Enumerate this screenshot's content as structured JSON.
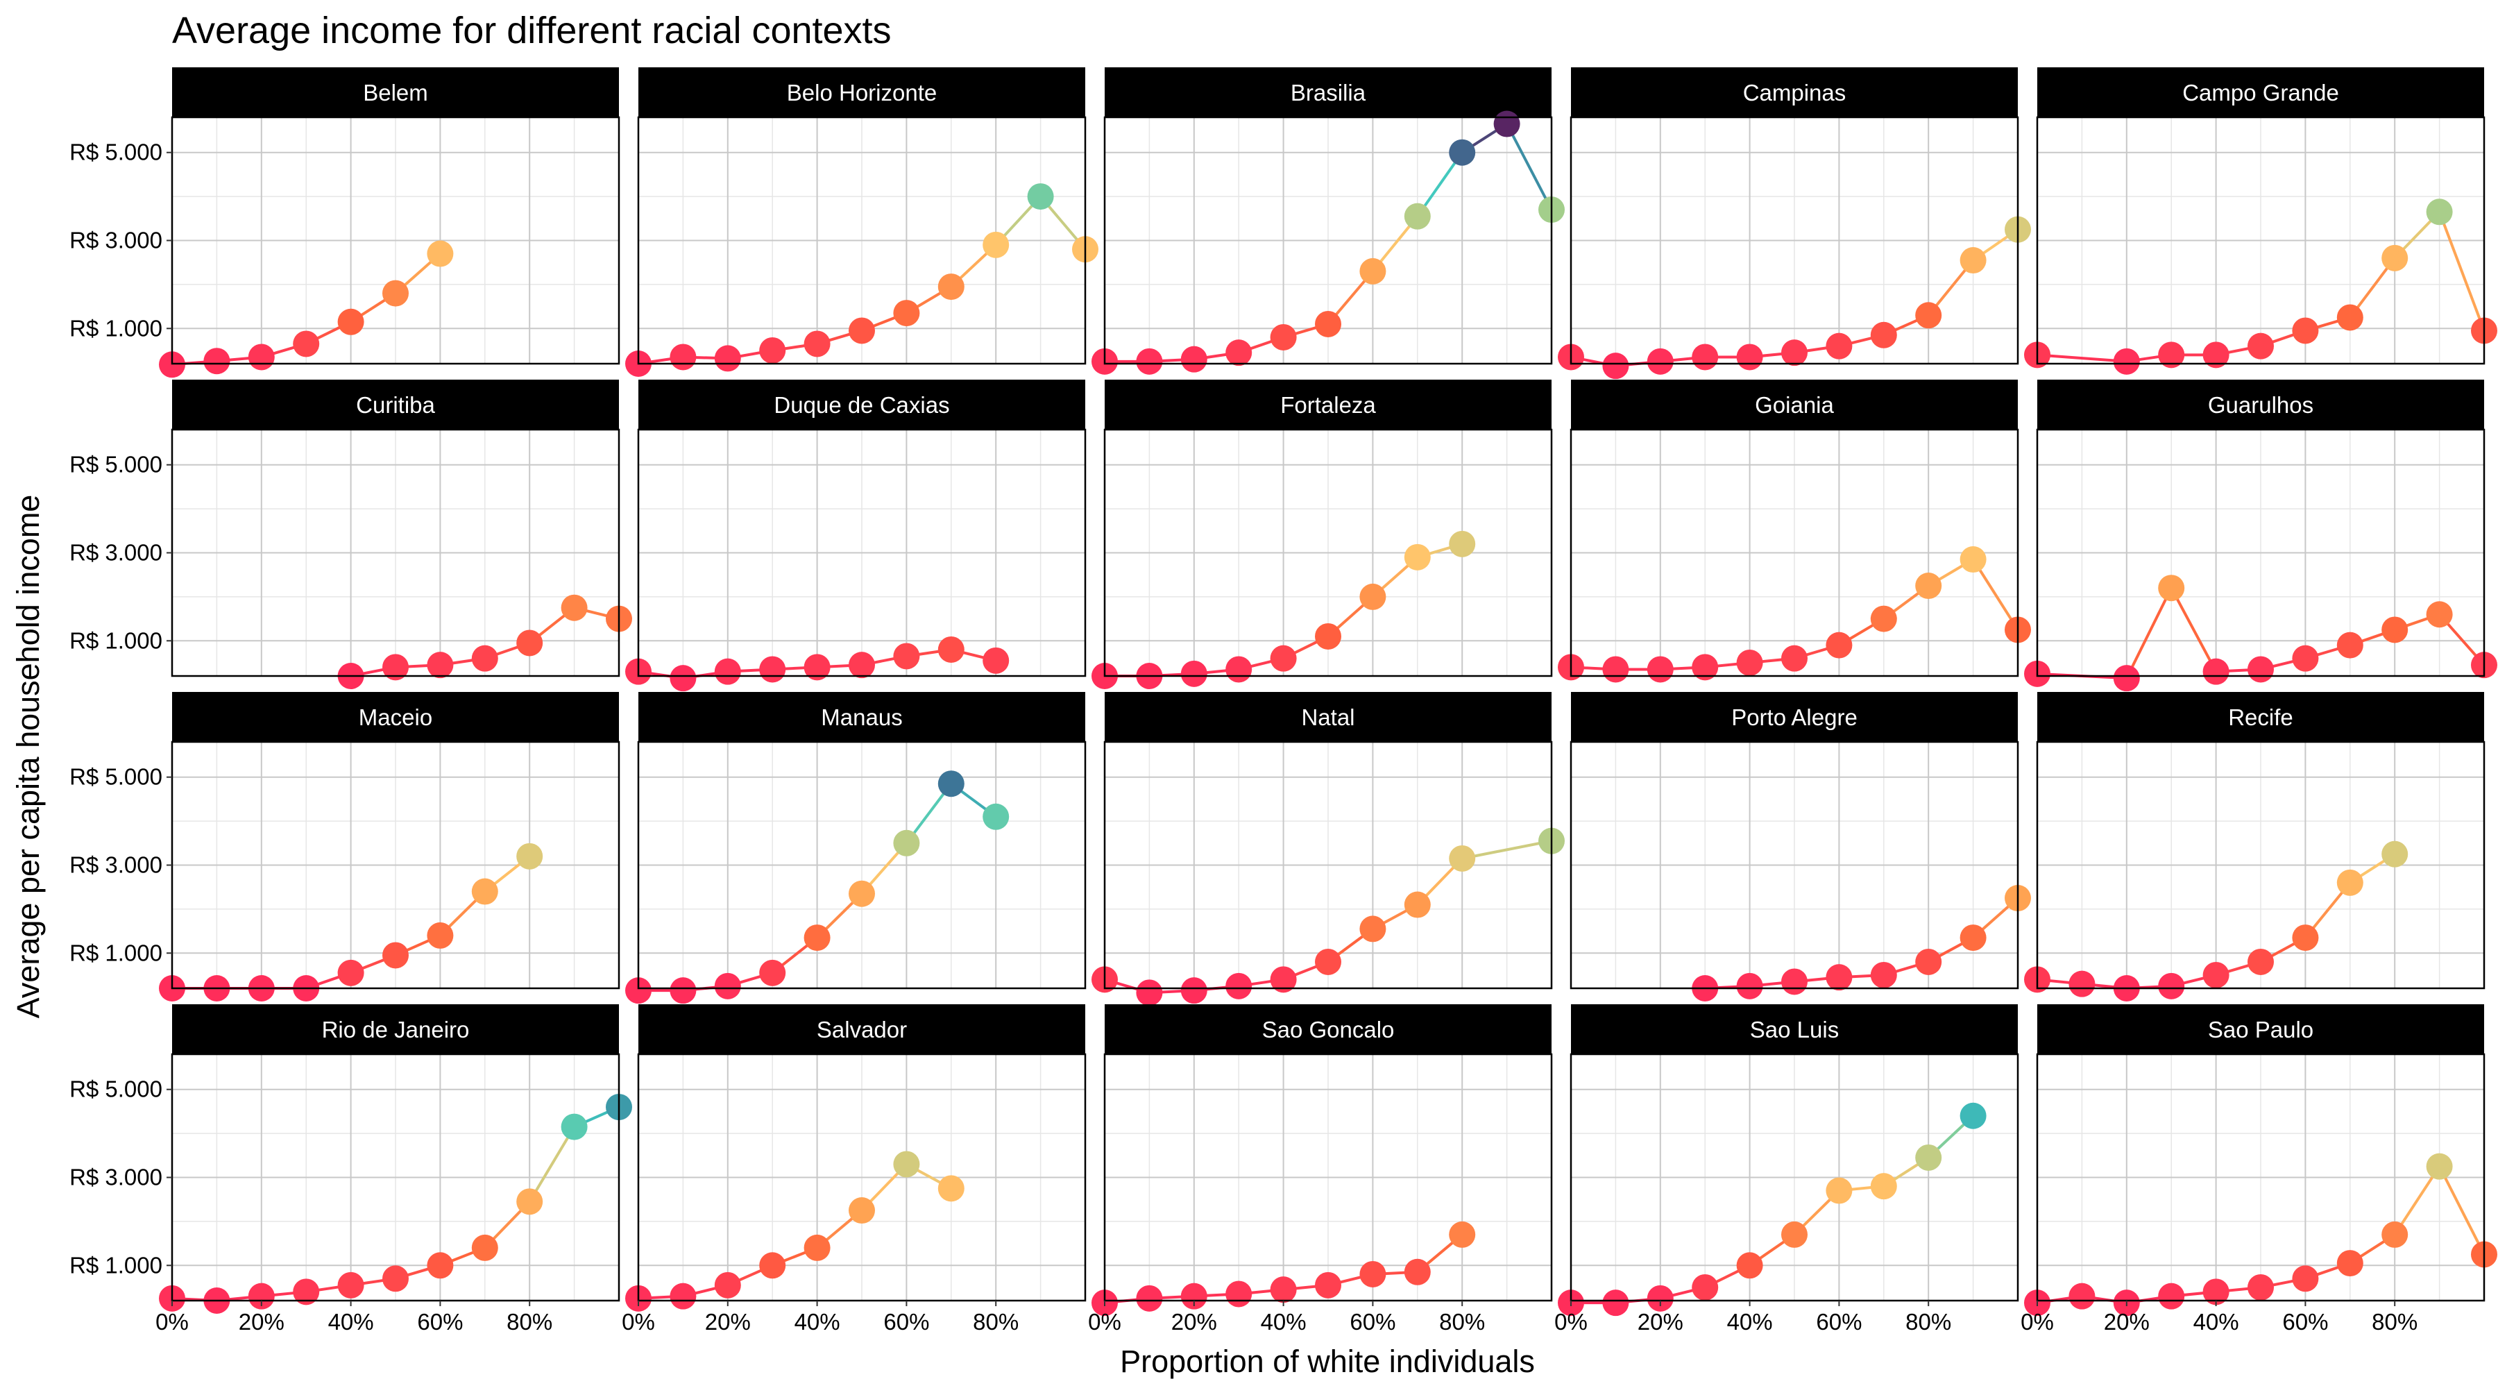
{
  "chart_data": {
    "type": "line",
    "title": "Average income for different racial contexts",
    "xlabel": "Proportion of white individuals",
    "ylabel": "Average per capita household income",
    "xlim": [
      0,
      1
    ],
    "ylim": [
      200,
      5800
    ],
    "x_ticks": [
      0,
      0.2,
      0.4,
      0.6,
      0.8
    ],
    "x_tick_labels": [
      "0%",
      "20%",
      "40%",
      "60%",
      "80%"
    ],
    "y_ticks": [
      1000,
      3000,
      5000
    ],
    "y_tick_labels": [
      "R$ 1.000",
      "R$ 3.000",
      "R$ 5.000"
    ],
    "grid": true,
    "color_scale": {
      "low": "#ff2d5a",
      "mid1": "#ff8c3a",
      "mid2": "#ffc56b",
      "mid3": "#9fce8e",
      "mid4": "#3fc9c0",
      "mid5": "#3b7a9a",
      "high": "#5a2060"
    },
    "panels": [
      {
        "name": "Belem",
        "x": [
          0,
          0.1,
          0.2,
          0.3,
          0.4,
          0.5,
          0.6
        ],
        "values": [
          180,
          260,
          350,
          650,
          1150,
          1800,
          2700
        ]
      },
      {
        "name": "Belo Horizonte",
        "x": [
          0,
          0.1,
          0.2,
          0.3,
          0.4,
          0.5,
          0.6,
          0.7,
          0.8,
          0.9,
          1.0
        ],
        "values": [
          200,
          350,
          320,
          500,
          650,
          950,
          1350,
          1950,
          2900,
          4000,
          2800
        ]
      },
      {
        "name": "Brasilia",
        "x": [
          0,
          0.1,
          0.2,
          0.3,
          0.4,
          0.5,
          0.6,
          0.7,
          0.8,
          0.9,
          1.0
        ],
        "values": [
          250,
          250,
          300,
          450,
          800,
          1100,
          2300,
          3550,
          5000,
          5650,
          3700
        ]
      },
      {
        "name": "Campinas",
        "x": [
          0,
          0.1,
          0.2,
          0.3,
          0.4,
          0.5,
          0.6,
          0.7,
          0.8,
          0.9,
          1.0
        ],
        "values": [
          350,
          150,
          250,
          350,
          350,
          450,
          600,
          850,
          1300,
          2550,
          3250
        ]
      },
      {
        "name": "Campo Grande",
        "x": [
          0,
          0.2,
          0.3,
          0.4,
          0.5,
          0.6,
          0.7,
          0.8,
          0.9,
          1.0
        ],
        "values": [
          400,
          250,
          400,
          400,
          600,
          950,
          1250,
          2600,
          3650,
          950
        ]
      },
      {
        "name": "Curitiba",
        "x": [
          0.4,
          0.5,
          0.6,
          0.7,
          0.8,
          0.9,
          1.0
        ],
        "values": [
          200,
          400,
          450,
          600,
          950,
          1750,
          1500
        ]
      },
      {
        "name": "Duque de Caxias",
        "x": [
          0,
          0.1,
          0.2,
          0.3,
          0.4,
          0.5,
          0.6,
          0.7,
          0.8
        ],
        "values": [
          300,
          150,
          300,
          350,
          400,
          450,
          650,
          800,
          550
        ]
      },
      {
        "name": "Fortaleza",
        "x": [
          0,
          0.1,
          0.2,
          0.3,
          0.4,
          0.5,
          0.6,
          0.7,
          0.8
        ],
        "values": [
          200,
          200,
          250,
          350,
          600,
          1100,
          2000,
          2900,
          3200
        ]
      },
      {
        "name": "Goiania",
        "x": [
          0,
          0.1,
          0.2,
          0.3,
          0.4,
          0.5,
          0.6,
          0.7,
          0.8,
          0.9,
          1.0
        ],
        "values": [
          400,
          350,
          350,
          400,
          500,
          600,
          900,
          1500,
          2250,
          2850,
          1250
        ]
      },
      {
        "name": "Guarulhos",
        "x": [
          0,
          0.2,
          0.3,
          0.4,
          0.5,
          0.6,
          0.7,
          0.8,
          0.9,
          1.0
        ],
        "values": [
          250,
          150,
          2200,
          300,
          350,
          600,
          900,
          1250,
          1600,
          450
        ]
      },
      {
        "name": "Maceio",
        "x": [
          0,
          0.1,
          0.2,
          0.3,
          0.4,
          0.5,
          0.6,
          0.7,
          0.8
        ],
        "values": [
          200,
          200,
          200,
          200,
          550,
          950,
          1400,
          2400,
          3200
        ]
      },
      {
        "name": "Manaus",
        "x": [
          0,
          0.1,
          0.2,
          0.3,
          0.4,
          0.5,
          0.6,
          0.7,
          0.8
        ],
        "values": [
          150,
          150,
          250,
          550,
          1350,
          2350,
          3500,
          4850,
          4100
        ]
      },
      {
        "name": "Natal",
        "x": [
          0,
          0.1,
          0.2,
          0.3,
          0.4,
          0.5,
          0.6,
          0.7,
          0.8,
          1.0
        ],
        "values": [
          400,
          100,
          150,
          250,
          400,
          800,
          1550,
          2100,
          3150,
          3550
        ]
      },
      {
        "name": "Porto Alegre",
        "x": [
          0.3,
          0.4,
          0.5,
          0.6,
          0.7,
          0.8,
          0.9,
          1.0
        ],
        "values": [
          200,
          250,
          350,
          450,
          500,
          800,
          1350,
          2250
        ]
      },
      {
        "name": "Recife",
        "x": [
          0,
          0.1,
          0.2,
          0.3,
          0.4,
          0.5,
          0.6,
          0.7,
          0.8
        ],
        "values": [
          400,
          300,
          200,
          250,
          500,
          800,
          1350,
          2600,
          3250
        ]
      },
      {
        "name": "Rio de Janeiro",
        "x": [
          0,
          0.1,
          0.2,
          0.3,
          0.4,
          0.5,
          0.6,
          0.7,
          0.8,
          0.9,
          1.0
        ],
        "values": [
          250,
          200,
          300,
          400,
          550,
          700,
          1000,
          1400,
          2450,
          4150,
          4600
        ]
      },
      {
        "name": "Salvador",
        "x": [
          0,
          0.1,
          0.2,
          0.3,
          0.4,
          0.5,
          0.6,
          0.7
        ],
        "values": [
          250,
          300,
          550,
          1000,
          1400,
          2250,
          3300,
          2750
        ]
      },
      {
        "name": "Sao Goncalo",
        "x": [
          0,
          0.1,
          0.2,
          0.3,
          0.4,
          0.5,
          0.6,
          0.7,
          0.8
        ],
        "values": [
          150,
          250,
          300,
          350,
          450,
          550,
          800,
          850,
          1700
        ]
      },
      {
        "name": "Sao Luis",
        "x": [
          0,
          0.1,
          0.2,
          0.3,
          0.4,
          0.5,
          0.6,
          0.7,
          0.8,
          0.9
        ],
        "values": [
          150,
          150,
          250,
          500,
          1000,
          1700,
          2700,
          2800,
          3450,
          4400
        ]
      },
      {
        "name": "Sao Paulo",
        "x": [
          0,
          0.1,
          0.2,
          0.3,
          0.4,
          0.5,
          0.6,
          0.7,
          0.8,
          0.9,
          1.0
        ],
        "values": [
          150,
          300,
          150,
          300,
          400,
          500,
          700,
          1050,
          1700,
          3250,
          1250
        ]
      }
    ]
  }
}
